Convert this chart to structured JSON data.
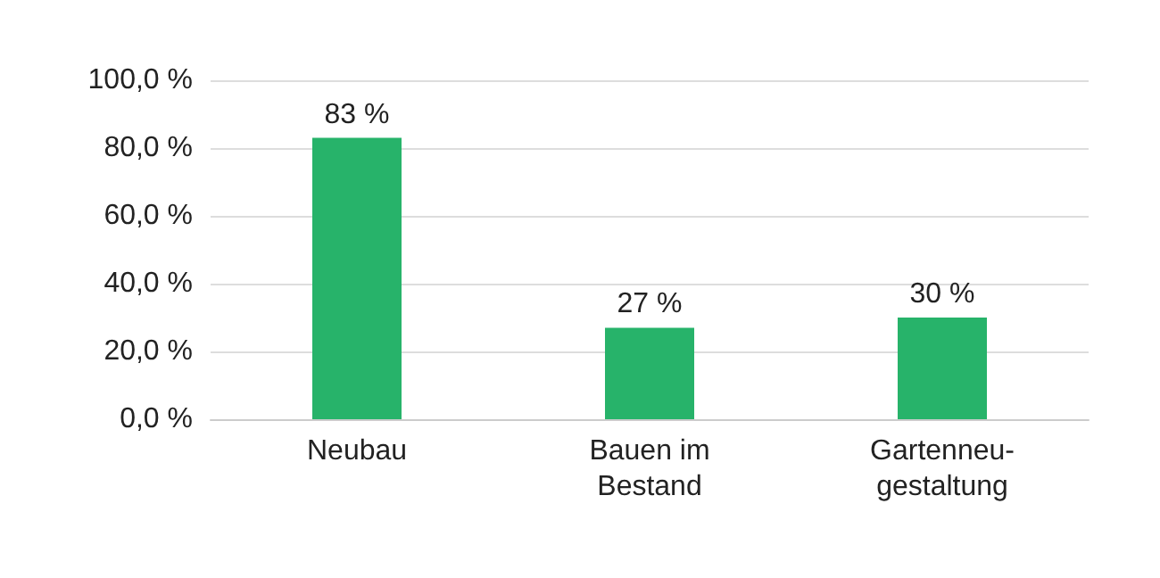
{
  "chart_data": {
    "type": "bar",
    "categories": [
      "Neubau",
      "Bauen im\nBestand",
      "Gartenneu-\ngestaltung"
    ],
    "values": [
      83,
      27,
      30
    ],
    "value_labels": [
      "83 %",
      "27 %",
      "30 %"
    ],
    "color": "#27b36a",
    "ylim": [
      0,
      100
    ],
    "yticks": [
      {
        "value": 0,
        "label": "0,0 %"
      },
      {
        "value": 20,
        "label": "20,0 %"
      },
      {
        "value": 40,
        "label": "40,0 %"
      },
      {
        "value": 60,
        "label": "60,0 %"
      },
      {
        "value": 80,
        "label": "80,0 %"
      },
      {
        "value": 100,
        "label": "100,0 %"
      }
    ],
    "grid": "y"
  }
}
